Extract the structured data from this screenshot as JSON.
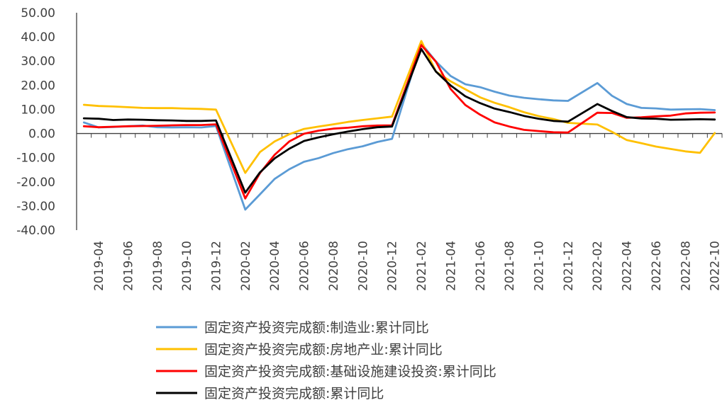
{
  "chart_data": {
    "type": "line",
    "ylim": [
      -40,
      50
    ],
    "y_ticks": [
      50,
      40,
      30,
      20,
      10,
      0,
      -10,
      -20,
      -30,
      -40
    ],
    "y_tick_labels": [
      "50.00",
      "40.00",
      "30.00",
      "20.00",
      "10.00",
      "0.00",
      "-10.00",
      "-20.00",
      "-30.00",
      "-40.00"
    ],
    "x": [
      "2019-03",
      "2019-04",
      "2019-05",
      "2019-06",
      "2019-07",
      "2019-08",
      "2019-09",
      "2019-10",
      "2019-11",
      "2019-12",
      "2020-01",
      "2020-02",
      "2020-03",
      "2020-04",
      "2020-05",
      "2020-06",
      "2020-07",
      "2020-08",
      "2020-09",
      "2020-10",
      "2020-11",
      "2020-12",
      "2021-01",
      "2021-02",
      "2021-03",
      "2021-04",
      "2021-05",
      "2021-06",
      "2021-07",
      "2021-08",
      "2021-09",
      "2021-10",
      "2021-11",
      "2021-12",
      "2022-01",
      "2022-02",
      "2022-03",
      "2022-04",
      "2022-05",
      "2022-06",
      "2022-07",
      "2022-08",
      "2022-09",
      "2022-10"
    ],
    "x_tick_labels": [
      "2019-04",
      "2019-06",
      "2019-08",
      "2019-10",
      "2019-12",
      "2020-02",
      "2020-04",
      "2020-06",
      "2020-08",
      "2020-10",
      "2020-12",
      "2021-02",
      "2021-04",
      "2021-06",
      "2021-08",
      "2021-10",
      "2021-12",
      "2022-02",
      "2022-04",
      "2022-06",
      "2022-08",
      "2022-10"
    ],
    "legend_position": "bottom",
    "series": [
      {
        "name": "固定资产投资完成额:制造业:累计同比",
        "color": "#5B9BD5",
        "values": [
          4.6,
          2.5,
          2.7,
          3.0,
          3.3,
          2.6,
          2.5,
          2.6,
          2.5,
          3.1,
          null,
          -31.5,
          -25.2,
          -18.8,
          -14.8,
          -11.7,
          -10.2,
          -8.1,
          -6.5,
          -5.3,
          -3.5,
          -2.2,
          null,
          37.3,
          29.8,
          23.8,
          20.4,
          19.2,
          17.3,
          15.7,
          14.8,
          14.2,
          13.7,
          13.5,
          null,
          20.9,
          15.6,
          12.2,
          10.6,
          10.4,
          9.9,
          10.0,
          10.1,
          9.7
        ]
      },
      {
        "name": "固定资产投资完成额:房地产业:累计同比",
        "color": "#FFC000",
        "values": [
          11.9,
          11.4,
          11.2,
          10.9,
          10.6,
          10.5,
          10.5,
          10.3,
          10.2,
          9.9,
          null,
          -16.3,
          -7.7,
          -3.3,
          -0.3,
          1.9,
          2.9,
          3.8,
          4.8,
          5.6,
          6.3,
          7.0,
          null,
          38.3,
          25.6,
          21.6,
          18.3,
          15.0,
          12.7,
          10.9,
          8.8,
          7.2,
          6.0,
          4.4,
          null,
          3.7,
          0.7,
          -2.7,
          -4.0,
          -5.4,
          -6.4,
          -7.4,
          -8.0,
          0.2
        ]
      },
      {
        "name": "固定资产投资完成额:基础设施建设投资:累计同比",
        "color": "#FF0000",
        "values": [
          3.0,
          2.6,
          2.8,
          3.0,
          3.1,
          3.2,
          3.4,
          3.5,
          3.5,
          3.8,
          null,
          -26.9,
          -16.4,
          -8.8,
          -3.3,
          -0.1,
          1.2,
          2.0,
          2.4,
          3.0,
          3.3,
          3.4,
          null,
          36.6,
          29.7,
          18.4,
          11.8,
          7.8,
          4.6,
          2.9,
          1.5,
          1.0,
          0.5,
          0.4,
          null,
          8.6,
          8.5,
          6.5,
          6.7,
          7.1,
          7.4,
          8.3,
          8.6,
          8.7
        ]
      },
      {
        "name": "固定资产投资完成额:累计同比",
        "color": "#000000",
        "values": [
          6.3,
          6.1,
          5.6,
          5.8,
          5.7,
          5.5,
          5.4,
          5.2,
          5.2,
          5.4,
          null,
          -24.5,
          -16.1,
          -10.3,
          -6.3,
          -3.1,
          -1.6,
          -0.3,
          0.8,
          1.8,
          2.6,
          2.9,
          null,
          35.0,
          25.6,
          19.9,
          15.4,
          12.6,
          10.3,
          8.9,
          7.3,
          6.1,
          5.2,
          4.9,
          null,
          12.2,
          9.3,
          6.8,
          6.2,
          6.1,
          5.7,
          5.8,
          5.9,
          5.8
        ]
      }
    ]
  }
}
